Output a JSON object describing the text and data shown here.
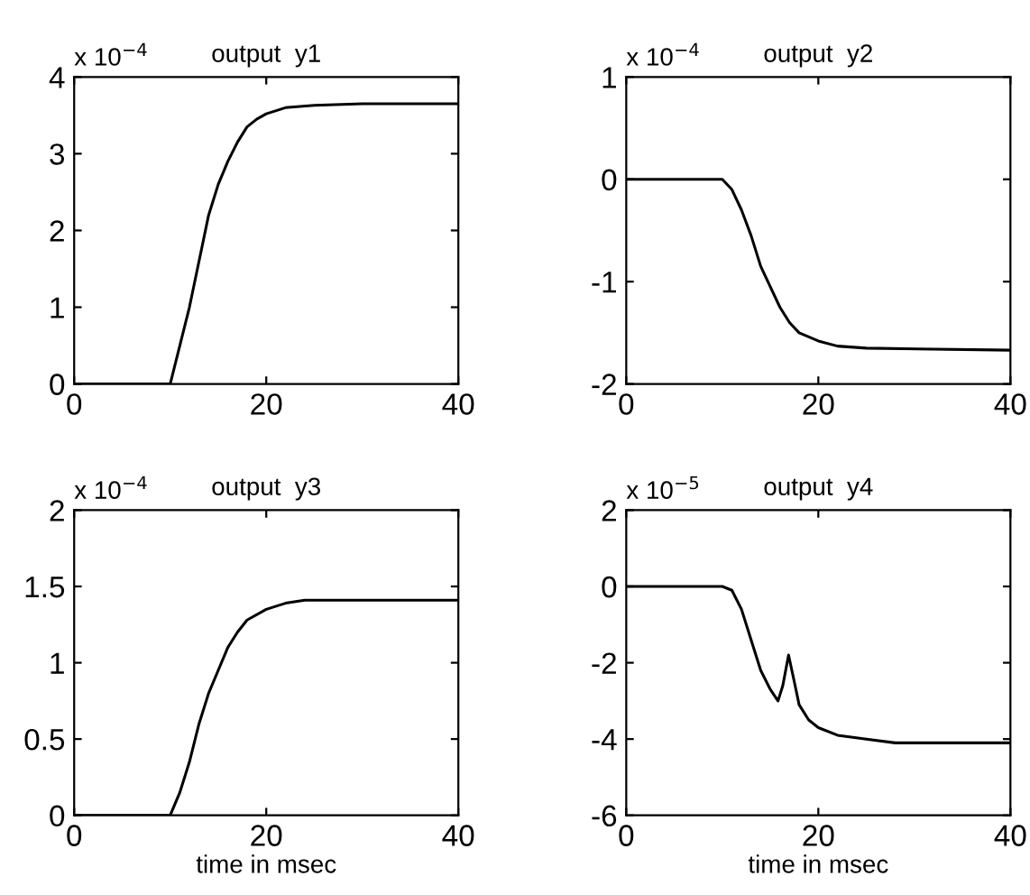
{
  "chart_data": [
    {
      "type": "line",
      "title": "output  y1",
      "annotations": [
        "x 10$^{−4}$"
      ],
      "xlim": [
        0,
        40
      ],
      "xticks": [
        0,
        20,
        40
      ],
      "ylim": [
        0,
        4
      ],
      "yticks": [
        0,
        1,
        2,
        3,
        4
      ],
      "grid": false,
      "marker": "none",
      "line_style": "solid",
      "series": [
        {
          "color": "#000000",
          "x": [
            0,
            10,
            11,
            12,
            13,
            14,
            15,
            16,
            17,
            18,
            19,
            20,
            22,
            25,
            30,
            40
          ],
          "values": [
            0,
            0,
            0.5,
            1.0,
            1.6,
            2.2,
            2.6,
            2.9,
            3.15,
            3.35,
            3.45,
            3.52,
            3.6,
            3.63,
            3.65,
            3.65
          ]
        }
      ]
    },
    {
      "type": "line",
      "title": "output  y2",
      "annotations": [
        "x 10$^{−4}$"
      ],
      "xlim": [
        0,
        40
      ],
      "xticks": [
        0,
        20,
        40
      ],
      "ylim": [
        -2,
        1
      ],
      "yticks": [
        -2,
        -1,
        0,
        1
      ],
      "grid": false,
      "marker": "none",
      "line_style": "solid",
      "series": [
        {
          "color": "#000000",
          "x": [
            0,
            10,
            11,
            12,
            13,
            14,
            15,
            16,
            17,
            18,
            20,
            22,
            25,
            40
          ],
          "values": [
            0,
            0,
            -0.1,
            -0.3,
            -0.55,
            -0.85,
            -1.05,
            -1.25,
            -1.4,
            -1.5,
            -1.58,
            -1.63,
            -1.65,
            -1.67
          ]
        }
      ]
    },
    {
      "type": "line",
      "title": "output  y3",
      "xlabel": "time in msec",
      "annotations": [
        "x 10$^{−4}$"
      ],
      "xlim": [
        0,
        40
      ],
      "xticks": [
        0,
        20,
        40
      ],
      "ylim": [
        0,
        2
      ],
      "yticks": [
        0,
        0.5,
        1,
        1.5,
        2
      ],
      "grid": false,
      "marker": "none",
      "line_style": "solid",
      "series": [
        {
          "color": "#000000",
          "x": [
            0,
            10,
            11,
            12,
            13,
            14,
            15,
            16,
            17,
            18,
            20,
            22,
            24,
            40
          ],
          "values": [
            0,
            0,
            0.15,
            0.35,
            0.6,
            0.8,
            0.95,
            1.1,
            1.2,
            1.28,
            1.35,
            1.39,
            1.41,
            1.41
          ]
        }
      ]
    },
    {
      "type": "line",
      "title": "output  y4",
      "xlabel": "time in msec",
      "annotations": [
        "x 10$^{−5}$"
      ],
      "xlim": [
        0,
        40
      ],
      "xticks": [
        0,
        20,
        40
      ],
      "ylim": [
        -6,
        2
      ],
      "yticks": [
        -6,
        -4,
        -2,
        0,
        2
      ],
      "grid": false,
      "marker": "none",
      "line_style": "solid",
      "series": [
        {
          "color": "#000000",
          "x": [
            0,
            10,
            11,
            12,
            13,
            14,
            15,
            15.8,
            16.3,
            16.9,
            17.5,
            18,
            19,
            20,
            22,
            25,
            28,
            40
          ],
          "values": [
            0,
            0,
            -0.1,
            -0.6,
            -1.4,
            -2.2,
            -2.7,
            -3.0,
            -2.6,
            -1.8,
            -2.5,
            -3.1,
            -3.5,
            -3.7,
            -3.9,
            -4.0,
            -4.1,
            -4.1
          ]
        }
      ]
    }
  ]
}
